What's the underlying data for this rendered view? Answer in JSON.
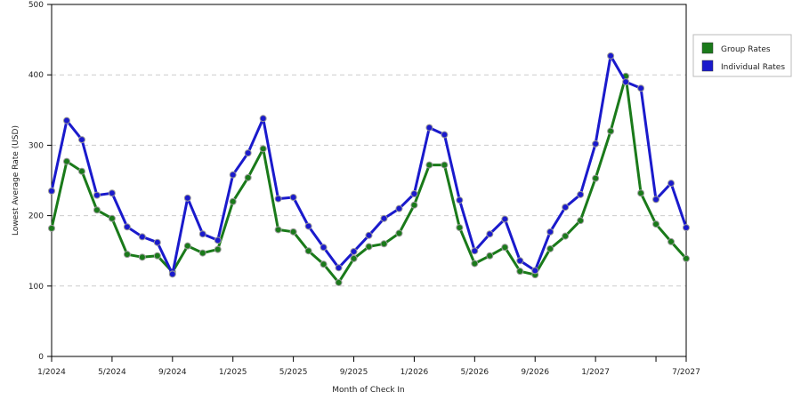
{
  "chart_data": {
    "type": "line",
    "xlabel": "Month of Check In",
    "ylabel": "Lowest Average Rate (USD)",
    "ylim": [
      0,
      500
    ],
    "yticks": [
      0,
      100,
      200,
      300,
      400,
      500
    ],
    "grid": "horizontal dashed",
    "legend_position": "right",
    "x": [
      "1/2024",
      "2/2024",
      "3/2024",
      "4/2024",
      "5/2024",
      "6/2024",
      "7/2024",
      "8/2024",
      "9/2024",
      "10/2024",
      "11/2024",
      "12/2024",
      "1/2025",
      "2/2025",
      "3/2025",
      "4/2025",
      "5/2025",
      "6/2025",
      "7/2025",
      "8/2025",
      "9/2025",
      "10/2025",
      "11/2025",
      "12/2025",
      "1/2026",
      "2/2026",
      "3/2026",
      "4/2026",
      "5/2026",
      "6/2026",
      "7/2026",
      "8/2026",
      "9/2026",
      "10/2026",
      "11/2026",
      "12/2026",
      "1/2027",
      "2/2027",
      "3/2027",
      "4/2027",
      "5/2027",
      "6/2027",
      "7/2027"
    ],
    "x_tick_labels": [
      {
        "index": 0,
        "label": "1/2024"
      },
      {
        "index": 4,
        "label": "5/2024"
      },
      {
        "index": 8,
        "label": "9/2024"
      },
      {
        "index": 12,
        "label": "1/2025"
      },
      {
        "index": 16,
        "label": "5/2025"
      },
      {
        "index": 20,
        "label": "9/2025"
      },
      {
        "index": 24,
        "label": "1/2026"
      },
      {
        "index": 28,
        "label": "5/2026"
      },
      {
        "index": 32,
        "label": "9/2026"
      },
      {
        "index": 36,
        "label": "1/2027"
      },
      {
        "index": 40,
        "label": ""
      },
      {
        "index": 42,
        "label": "7/2027"
      }
    ],
    "series": [
      {
        "name": "Group Rates",
        "color": "#1a7a1a",
        "values": [
          182,
          277,
          263,
          208,
          196,
          145,
          141,
          143,
          120,
          157,
          147,
          152,
          220,
          254,
          295,
          180,
          177,
          150,
          131,
          105,
          139,
          156,
          160,
          175,
          215,
          272,
          272,
          183,
          132,
          143,
          155,
          121,
          116,
          153,
          171,
          193,
          253,
          320,
          398,
          232,
          188,
          163,
          139
        ]
      },
      {
        "name": "Individual Rates",
        "color": "#1a1acc",
        "values": [
          235,
          335,
          308,
          229,
          232,
          184,
          170,
          162,
          117,
          225,
          174,
          165,
          258,
          289,
          338,
          224,
          226,
          185,
          155,
          126,
          149,
          172,
          196,
          210,
          231,
          325,
          315,
          222,
          150,
          174,
          195,
          136,
          122,
          177,
          212,
          230,
          302,
          427,
          390,
          381,
          223,
          246,
          183
        ]
      }
    ]
  }
}
